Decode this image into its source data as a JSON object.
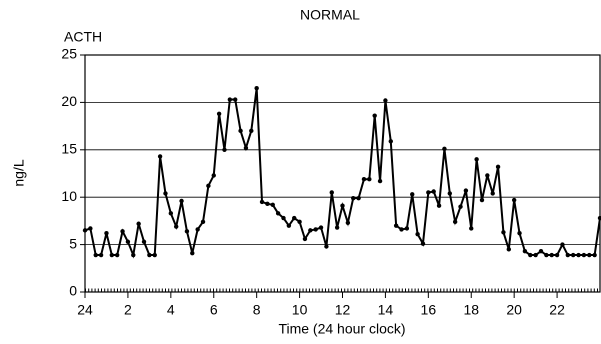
{
  "chart_data": {
    "type": "line",
    "title": "NORMAL",
    "subtitle": "ACTH",
    "x_label": "Time (24 hour clock)",
    "y_label": "ng/L",
    "x": [
      0,
      0.25,
      0.5,
      0.75,
      1,
      1.25,
      1.5,
      1.75,
      2,
      2.25,
      2.5,
      2.75,
      3,
      3.25,
      3.5,
      3.75,
      4,
      4.25,
      4.5,
      4.75,
      5,
      5.25,
      5.5,
      5.75,
      6,
      6.25,
      6.5,
      6.75,
      7,
      7.25,
      7.5,
      7.75,
      8,
      8.25,
      8.5,
      8.75,
      9,
      9.25,
      9.5,
      9.75,
      10,
      10.25,
      10.5,
      10.75,
      11,
      11.25,
      11.5,
      11.75,
      12,
      12.25,
      12.5,
      12.75,
      13,
      13.25,
      13.5,
      13.75,
      14,
      14.25,
      14.5,
      14.75,
      15,
      15.25,
      15.5,
      15.75,
      16,
      16.25,
      16.5,
      16.75,
      17,
      17.25,
      17.5,
      17.75,
      18,
      18.25,
      18.5,
      18.75,
      19,
      19.25,
      19.5,
      19.75,
      20,
      20.25,
      20.5,
      20.75,
      21,
      21.25,
      21.5,
      21.75,
      22,
      22.25,
      22.5,
      22.75,
      23,
      23.25,
      23.5,
      23.75,
      24
    ],
    "series": [
      {
        "name": "ACTH",
        "color": "#000000",
        "values": [
          6.5,
          6.7,
          3.9,
          3.9,
          6.2,
          3.9,
          3.9,
          6.4,
          5.3,
          3.9,
          7.2,
          5.3,
          3.9,
          3.9,
          14.3,
          10.4,
          8.3,
          6.9,
          9.6,
          6.4,
          4.1,
          6.6,
          7.4,
          11.2,
          12.3,
          18.8,
          15.0,
          20.3,
          20.3,
          17.0,
          15.2,
          17.0,
          21.5,
          9.5,
          9.3,
          9.2,
          8.3,
          7.8,
          7.0,
          7.8,
          7.4,
          5.6,
          6.5,
          6.6,
          6.8,
          4.8,
          10.5,
          6.8,
          9.1,
          7.3,
          9.9,
          9.9,
          11.9,
          11.9,
          18.6,
          11.7,
          20.2,
          15.9,
          7.0,
          6.6,
          6.7,
          10.3,
          6.1,
          5.1,
          10.5,
          10.6,
          9.1,
          15.1,
          10.4,
          7.4,
          9.0,
          10.7,
          6.7,
          14.0,
          9.7,
          12.3,
          10.4,
          13.2,
          6.3,
          4.5,
          9.7,
          6.2,
          4.3,
          3.9,
          3.9,
          4.3,
          3.9,
          3.9,
          3.9,
          5.0,
          3.9,
          3.9,
          3.9,
          3.9,
          3.9,
          3.9,
          7.8
        ]
      }
    ],
    "xlim": [
      0,
      24
    ],
    "xticks": [
      {
        "value": 0,
        "label": "24"
      },
      2,
      4,
      6,
      8,
      10,
      12,
      14,
      16,
      18,
      20,
      22
    ],
    "ylim": [
      0,
      25
    ],
    "yticks": [
      0,
      5,
      10,
      15,
      20,
      25
    ],
    "grid": true
  }
}
